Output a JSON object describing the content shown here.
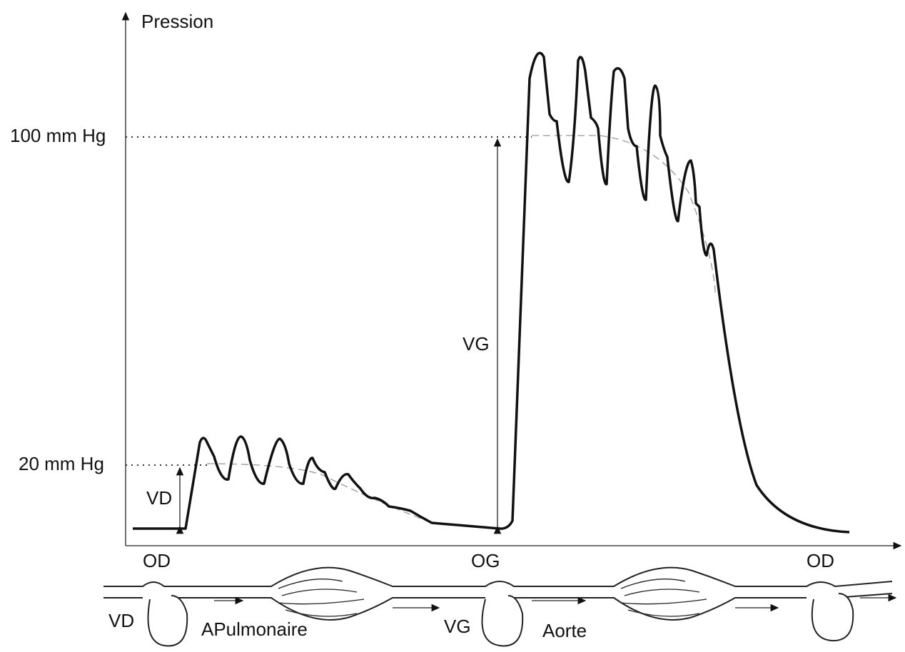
{
  "axis": {
    "title": "Pression",
    "levels": [
      "100 mm Hg",
      "20 mm Hg"
    ]
  },
  "measures": {
    "right_ventricle": "VD",
    "left_ventricle": "VG"
  },
  "time_labels": [
    "OD",
    "OG",
    "OD"
  ],
  "circulation": {
    "labels": [
      "VD",
      "APulmonaire",
      "VG",
      "Aorte"
    ]
  }
}
